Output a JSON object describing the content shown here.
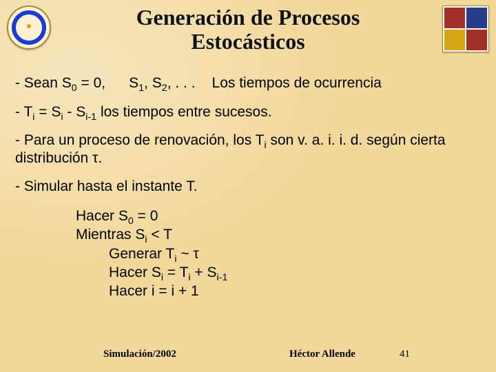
{
  "colors": {
    "background": "#f2d89a",
    "title_text": "#111111",
    "body_text": "#000000",
    "logo_ring": "#1a3cd4",
    "logo_dot": "#d6a113",
    "shield": {
      "q1": "#a33028",
      "q2": "#2a3c8c",
      "q3": "#d4a612",
      "q4": "#a33028"
    }
  },
  "typography": {
    "title_font": "Georgia/serif",
    "title_size_pt": 24,
    "body_font": "Arial",
    "body_size_pt": 16,
    "footer_font": "Times New Roman",
    "footer_size_pt": 11
  },
  "title": {
    "line1": "Generación de Procesos",
    "line2": "Estocásticos"
  },
  "line1": {
    "a": "- Sean S",
    "a_sub": "0",
    "b": " = 0,",
    "c": "S",
    "c_sub1": "1",
    "d": ", S",
    "c_sub2": "2",
    "e": ", . . .",
    "f": "Los tiempos de ocurrencia"
  },
  "line2": {
    "a": "- T",
    "sub_i1": "i",
    "b": " = S",
    "sub_i2": "i",
    "c": " - S",
    "sub_im1": "i-1",
    "d": " los tiempos entre sucesos."
  },
  "line3": {
    "a": "- Para un proceso de renovación, los T",
    "sub_i": "i",
    "b": " son v. a. i. i. d. según cierta distribución ",
    "tau": "τ",
    "dot": "."
  },
  "line4": "- Simular hasta el instante T.",
  "algo": {
    "l1a": "Hacer S",
    "l1sub": "0",
    "l1b": " = 0",
    "l2a": "Mientras S",
    "l2sub": "i",
    "l2b": " < T",
    "l3a": "Generar T",
    "l3sub": "i",
    "l3b": " ~ ",
    "l3tau": "τ",
    "l4a": "Hacer S",
    "l4sub1": "i",
    "l4b": " = T",
    "l4sub2": "i",
    "l4c": " + S",
    "l4sub3": "i-1",
    "l5": "Hacer i = i + 1"
  },
  "footer": {
    "left": "Simulación/2002",
    "center": "Héctor Allende",
    "page": "41"
  }
}
